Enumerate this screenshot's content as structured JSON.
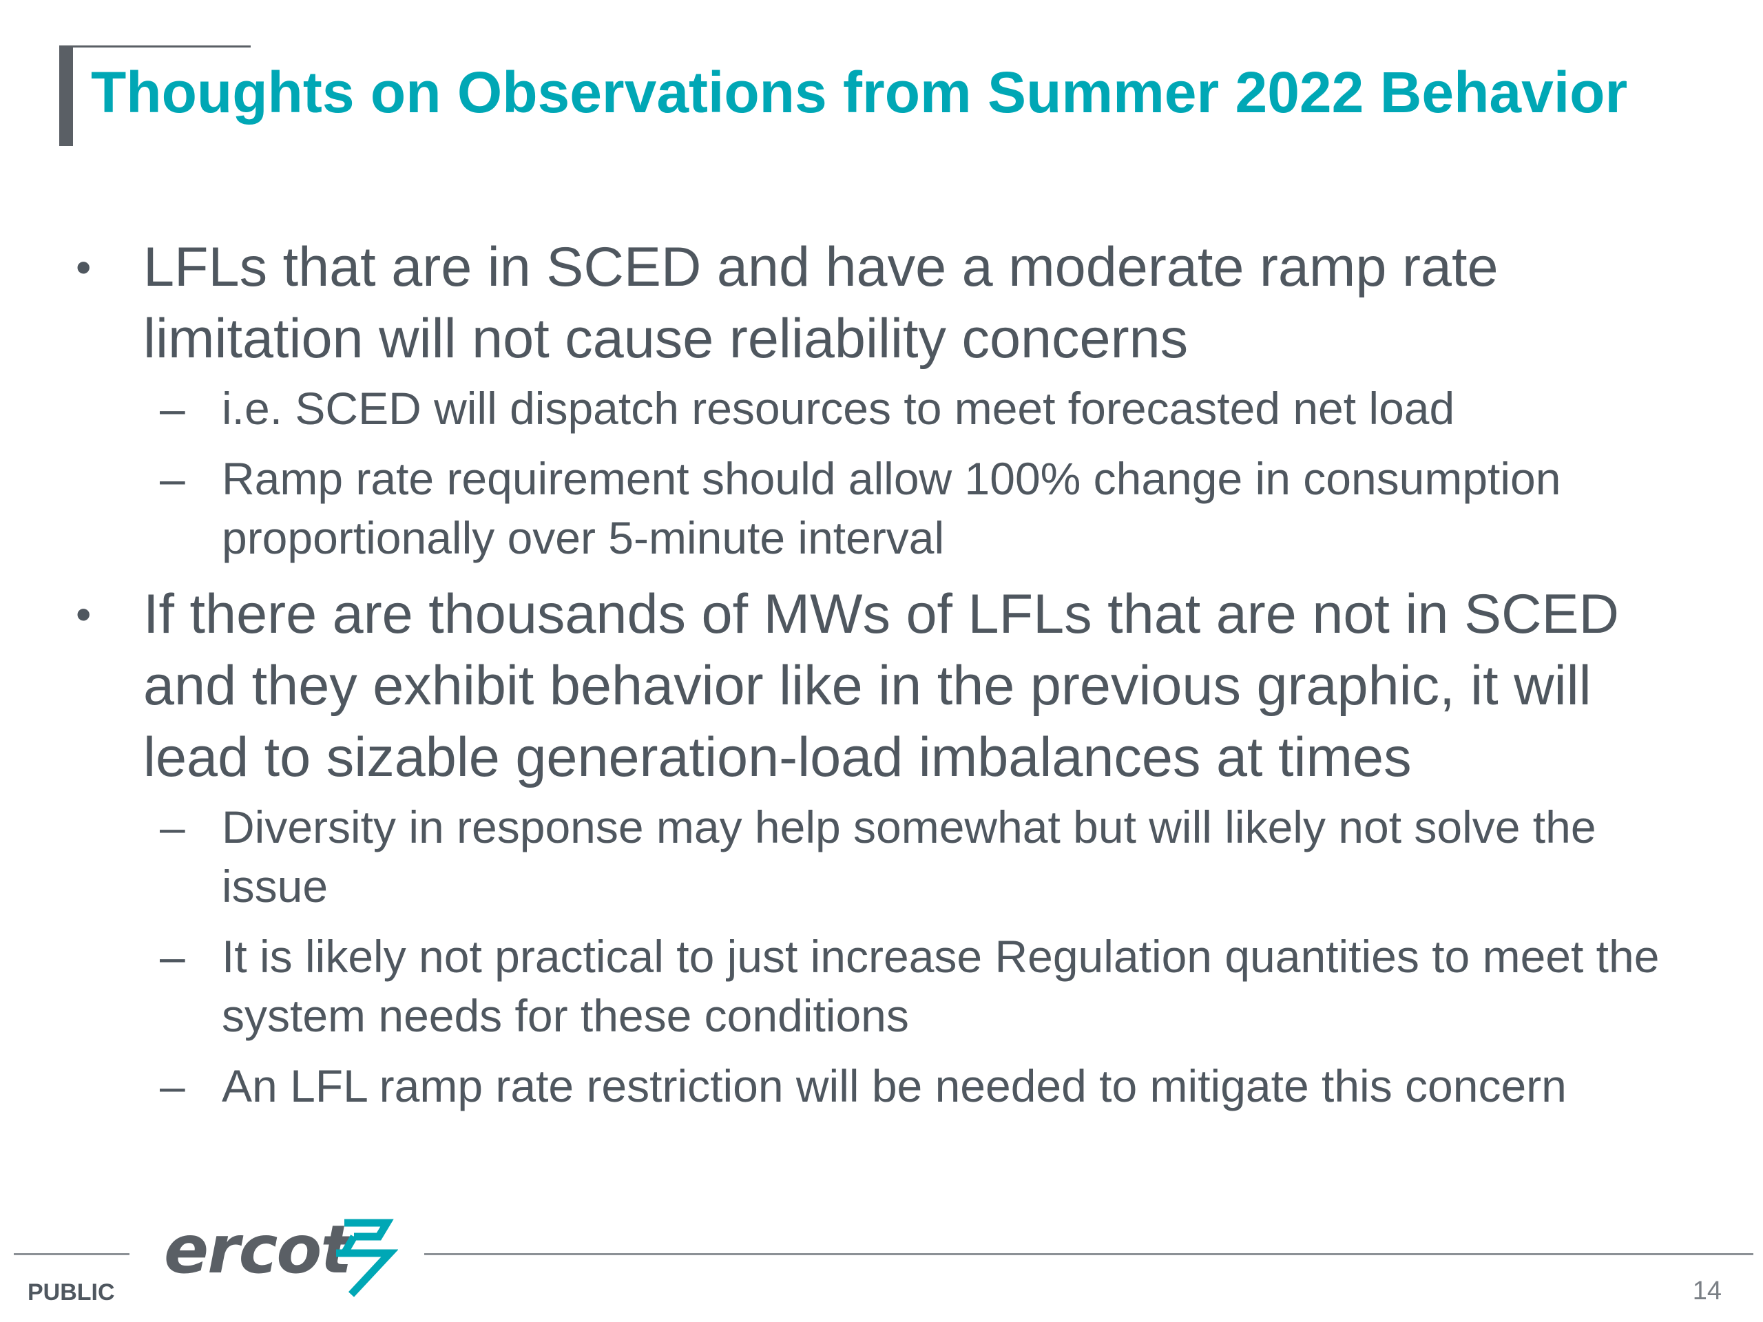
{
  "title": "Thoughts on Observations from Summer 2022 Behavior",
  "bullets": [
    {
      "text": "LFLs that are in SCED and have a moderate ramp rate limitation will not cause reliability concerns",
      "subs": [
        "i.e. SCED will dispatch resources to meet forecasted net load",
        "Ramp rate requirement should allow 100% change in consumption proportionally over 5-minute interval"
      ]
    },
    {
      "text": "If there are thousands of MWs of LFLs that are not in SCED and they exhibit behavior like in the previous graphic, it will lead to sizable generation-load imbalances at times",
      "subs": [
        "Diversity in response may help somewhat but will likely not solve the issue",
        "It is likely not practical to just increase Regulation quantities to meet the system needs for these conditions",
        "An LFL ramp rate restriction will be needed to mitigate this concern"
      ]
    }
  ],
  "markers": {
    "level1": "•",
    "level2": "–"
  },
  "footer": {
    "logo_text": "ercot",
    "classification": "PUBLIC",
    "page_number": "14"
  },
  "colors": {
    "title": "#00a7b5",
    "body_text": "#4f575f",
    "accent_gray": "#5a5f65",
    "logo_mark": "#00a7b5"
  }
}
